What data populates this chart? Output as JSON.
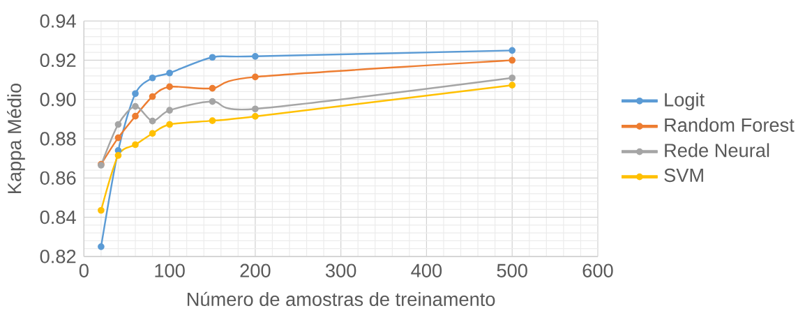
{
  "chart_data": {
    "type": "line",
    "xlabel": "Número de amostras de treinamento",
    "ylabel": "Kappa Médio",
    "x": [
      20,
      40,
      60,
      80,
      100,
      150,
      200,
      500
    ],
    "series": [
      {
        "name": "Logit",
        "color": "#5b9bd5",
        "values": [
          0.825,
          0.874,
          0.903,
          0.911,
          0.9135,
          0.9215,
          0.922,
          0.925
        ]
      },
      {
        "name": "Random Forest",
        "color": "#ed7d31",
        "values": [
          0.867,
          0.8805,
          0.8915,
          0.9015,
          0.9065,
          0.9057,
          0.9115,
          0.92
        ]
      },
      {
        "name": "Rede Neural",
        "color": "#a5a5a5",
        "values": [
          0.8665,
          0.8873,
          0.8965,
          0.889,
          0.8945,
          0.899,
          0.8952,
          0.911
        ]
      },
      {
        "name": "SVM",
        "color": "#ffc000",
        "values": [
          0.8435,
          0.8715,
          0.877,
          0.8827,
          0.8873,
          0.8892,
          0.8914,
          0.9073
        ]
      }
    ],
    "xlim": [
      0,
      600
    ],
    "xticks": [
      0,
      100,
      200,
      300,
      400,
      500,
      600
    ],
    "ylim": [
      0.82,
      0.94
    ],
    "yticks": [
      {
        "value": 0.82,
        "label": "0.82"
      },
      {
        "value": 0.84,
        "label": "0.84"
      },
      {
        "value": 0.86,
        "label": "0.86"
      },
      {
        "value": 0.88,
        "label": "0.88"
      },
      {
        "value": 0.9,
        "label": "0.90"
      },
      {
        "value": 0.92,
        "label": "0.92"
      },
      {
        "value": 0.94,
        "label": "0.94"
      }
    ],
    "grid": true,
    "legend": "right",
    "marker": "circle",
    "line_style": "solid"
  }
}
